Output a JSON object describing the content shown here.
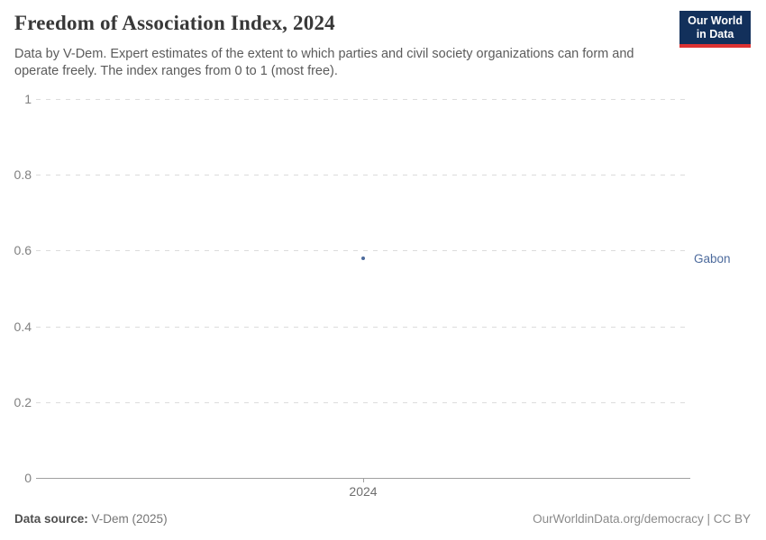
{
  "header": {
    "title": "Freedom of Association Index, 2024",
    "subtitle": "Data by V-Dem. Expert estimates of the extent to which parties and civil society organizations can form and operate freely. The index ranges from 0 to 1 (most free).",
    "logo": {
      "line1": "Our World",
      "line2": "in Data",
      "bg_color": "#12305b",
      "accent_color": "#dc3232"
    }
  },
  "chart_data": {
    "type": "scatter",
    "title": "Freedom of Association Index, 2024",
    "x": [
      2024
    ],
    "xtick_labels": [
      "2024"
    ],
    "series": [
      {
        "name": "Gabon",
        "values": [
          0.58
        ],
        "color": "#4c6a9c"
      }
    ],
    "xlabel": "",
    "ylabel": "",
    "ylim": [
      0,
      1
    ],
    "yticks": [
      0,
      0.2,
      0.4,
      0.6,
      0.8,
      1
    ],
    "ytick_labels": [
      "0",
      "0.2",
      "0.4",
      "0.6",
      "0.8",
      "1"
    ],
    "grid": "horizontal-dashed",
    "legend_position": "right-entity-label"
  },
  "footer": {
    "source_label": "Data source:",
    "source_value": " V-Dem (2025)",
    "attribution": "OurWorldinData.org/democracy | CC BY"
  }
}
